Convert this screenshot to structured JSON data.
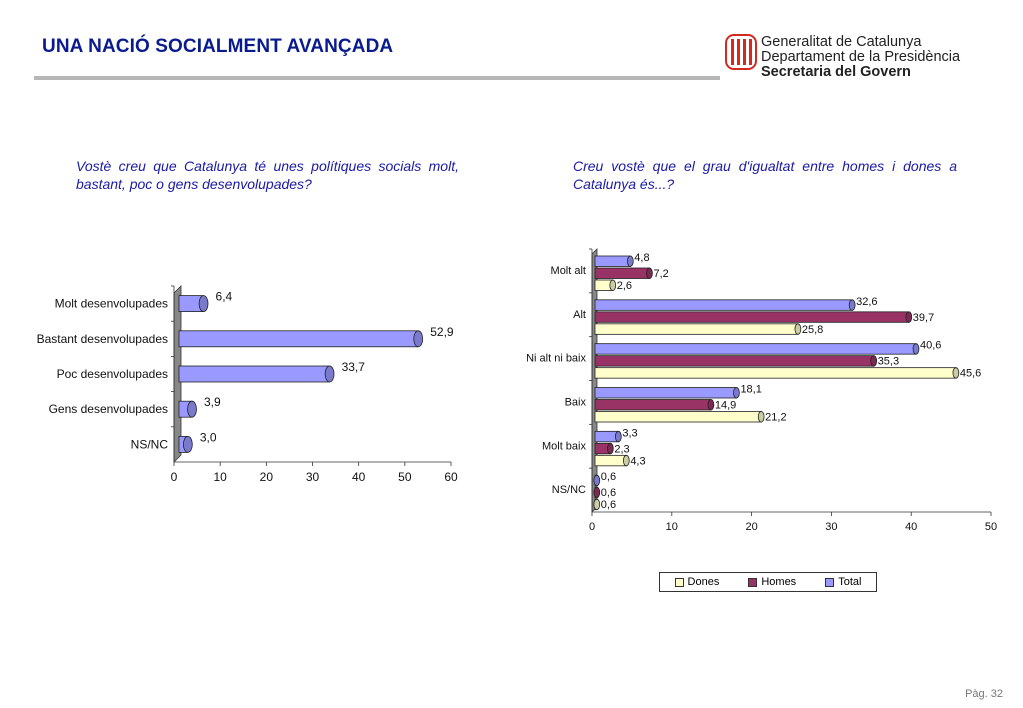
{
  "page": {
    "title": "UNA NACIÓ SOCIALMENT AVANÇADA",
    "page_number": "Pàg. 32"
  },
  "logo": {
    "line1": "Generalitat de Catalunya",
    "line2": "Departament de la Presidència",
    "line3": "Secretaria del Govern",
    "stripe_color": "#d42a1e",
    "gold_color": "#f2c14e"
  },
  "questions": {
    "q1": "Vostè creu que Catalunya té unes polítiques socials molt, bastant, poc o gens desenvolupades?",
    "q2": "Creu vostè que el grau d'igualtat entre homes i dones a Catalunya és...?"
  },
  "colors": {
    "total": "#9999ff",
    "homes": "#993366",
    "dones": "#ffffcc",
    "title": "#0a1a8f",
    "question": "#1a1aa6"
  },
  "chart_data": [
    {
      "type": "bar",
      "orientation": "horizontal",
      "categories": [
        "Molt desenvolupades",
        "Bastant desenvolupades",
        "Poc desenvolupades",
        "Gens desenvolupades",
        "NS/NC"
      ],
      "values": [
        6.4,
        52.9,
        33.7,
        3.9,
        3.0
      ],
      "value_labels": [
        "6,4",
        "52,9",
        "33,7",
        "3,9",
        "3,0"
      ],
      "xlim": [
        0,
        60
      ],
      "xticks": [
        "0",
        "10",
        "20",
        "30",
        "40",
        "50",
        "60"
      ],
      "bar_color": "#9999ff",
      "grid": false
    },
    {
      "type": "bar",
      "orientation": "horizontal",
      "categories": [
        "Molt alt",
        "Alt",
        "Ni alt ni baix",
        "Baix",
        "Molt baix",
        "NS/NC"
      ],
      "series": [
        {
          "name": "Total",
          "color": "#9999ff",
          "values": [
            4.8,
            32.6,
            40.6,
            18.1,
            3.3,
            0.6
          ],
          "labels": [
            "4,8",
            "32,6",
            "40,6",
            "18,1",
            "3,3",
            "0,6"
          ]
        },
        {
          "name": "Homes",
          "color": "#993366",
          "values": [
            7.2,
            39.7,
            35.3,
            14.9,
            2.3,
            0.6
          ],
          "labels": [
            "7,2",
            "39,7",
            "35,3",
            "14,9",
            "2,3",
            "0,6"
          ]
        },
        {
          "name": "Dones",
          "color": "#ffffcc",
          "values": [
            2.6,
            25.8,
            45.6,
            21.2,
            4.3,
            0.6
          ],
          "labels": [
            "2,6",
            "25,8",
            "45,6",
            "21,2",
            "4,3",
            "0,6"
          ]
        }
      ],
      "xlim": [
        0,
        50
      ],
      "xticks": [
        "0",
        "10",
        "20",
        "30",
        "40",
        "50"
      ],
      "legend_position": "bottom",
      "legend_order": [
        "Dones",
        "Homes",
        "Total"
      ],
      "grid": false
    }
  ]
}
